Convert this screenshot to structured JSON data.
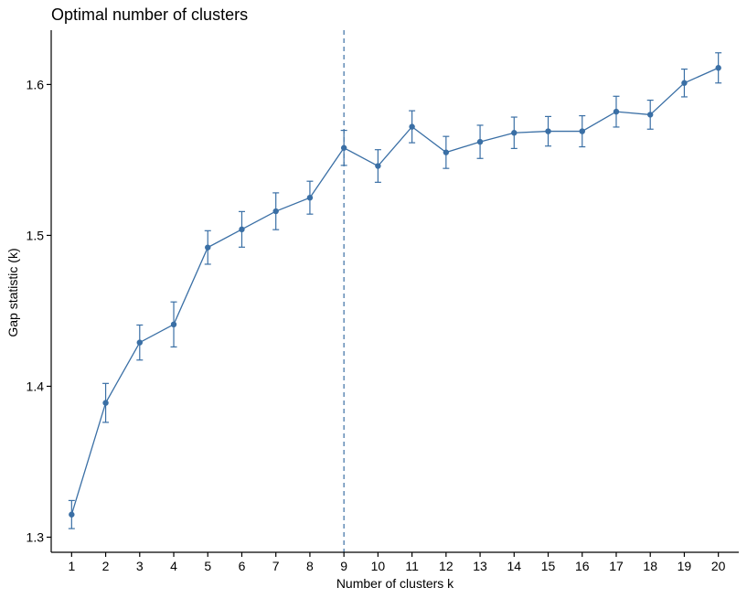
{
  "chart_data": {
    "type": "line",
    "title": "Optimal number of clusters",
    "xlabel": "Number of clusters k",
    "ylabel": "Gap statistic (k)",
    "x": [
      1,
      2,
      3,
      4,
      5,
      6,
      7,
      8,
      9,
      10,
      11,
      12,
      13,
      14,
      15,
      16,
      17,
      18,
      19,
      20
    ],
    "xticks": [
      "1",
      "2",
      "3",
      "4",
      "5",
      "6",
      "7",
      "8",
      "9",
      "10",
      "11",
      "12",
      "13",
      "14",
      "15",
      "16",
      "17",
      "18",
      "19",
      "20"
    ],
    "xlim": [
      0.4,
      20.6
    ],
    "ylim": [
      1.29,
      1.636
    ],
    "yticks": [
      1.3,
      1.4,
      1.5,
      1.6
    ],
    "ytick_labels": [
      "1.3",
      "1.4",
      "1.5",
      "1.6"
    ],
    "series": [
      {
        "values": [
          1.315,
          1.389,
          1.429,
          1.441,
          1.492,
          1.504,
          1.516,
          1.525,
          1.558,
          1.546,
          1.572,
          1.555,
          1.562,
          1.568,
          1.569,
          1.569,
          1.582,
          1.58,
          1.601,
          1.611
        ],
        "err": [
          0.0093,
          0.0129,
          0.0116,
          0.0149,
          0.0111,
          0.0118,
          0.0122,
          0.0109,
          0.0116,
          0.0108,
          0.0106,
          0.0106,
          0.011,
          0.0104,
          0.0098,
          0.0103,
          0.0102,
          0.0096,
          0.0092,
          0.01
        ]
      }
    ],
    "vline_x": 9,
    "grid": false,
    "colors": {
      "series": "#3a6fa5",
      "axis": "#000000"
    }
  }
}
